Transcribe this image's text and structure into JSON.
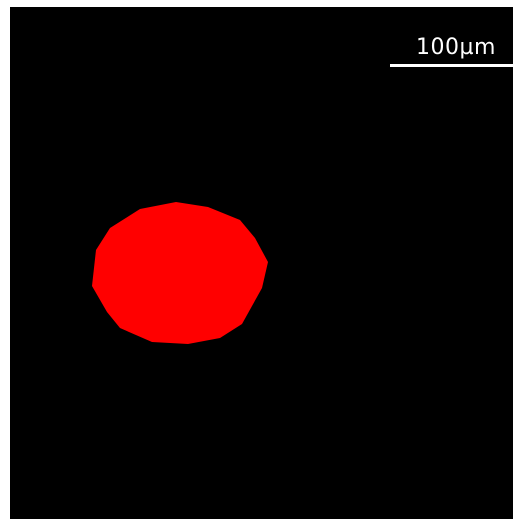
{
  "image": {
    "background_color": "#000000",
    "blob_color": "#ff0000"
  },
  "scale_bar": {
    "label": "100µm",
    "color": "#ffffff"
  }
}
